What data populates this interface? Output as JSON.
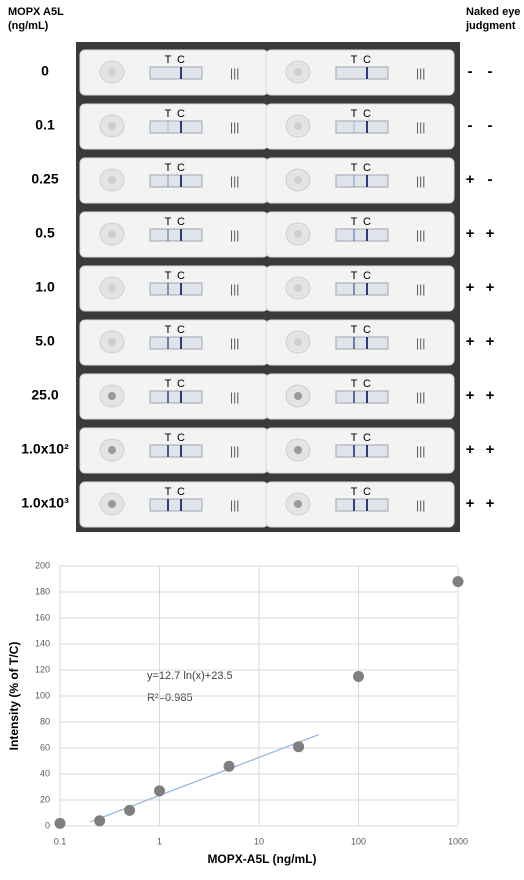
{
  "strip_panel": {
    "concentration_header": [
      "MOPX A5L",
      "(ng/mL)"
    ],
    "judgment_header": [
      "Naked eye",
      "judgment"
    ],
    "strip_labels": [
      "T",
      "C"
    ],
    "rows": [
      {
        "concentration": "0",
        "judgment": [
          "-",
          "-"
        ]
      },
      {
        "concentration": "0.1",
        "judgment": [
          "-",
          "-"
        ]
      },
      {
        "concentration": "0.25",
        "judgment": [
          "+",
          "-"
        ]
      },
      {
        "concentration": "0.5",
        "judgment": [
          "+",
          "+"
        ]
      },
      {
        "concentration": "1.0",
        "judgment": [
          "+",
          "+"
        ]
      },
      {
        "concentration": "5.0",
        "judgment": [
          "+",
          "+"
        ]
      },
      {
        "concentration": "25.0",
        "judgment": [
          "+",
          "+"
        ]
      },
      {
        "concentration": "1.0x10²",
        "judgment": [
          "+",
          "+"
        ]
      },
      {
        "concentration": "1.0x10³",
        "judgment": [
          "+",
          "+"
        ]
      }
    ]
  },
  "chart_data": {
    "type": "scatter",
    "x_label": "MOPX-A5L (ng/mL)",
    "y_label": "Intensity (% of T/C)",
    "x": [
      0.1,
      0.25,
      0.5,
      1,
      5,
      25,
      100,
      1000
    ],
    "values": [
      2,
      4,
      12,
      27,
      46,
      61,
      115,
      188
    ],
    "color": "#7f7f7f",
    "x_log": true,
    "xlim": [
      0.1,
      1000
    ],
    "xticks": [
      0.1,
      1,
      10,
      100,
      1000
    ],
    "ylim": [
      0,
      200
    ],
    "yticks": [
      0,
      20,
      40,
      60,
      80,
      100,
      120,
      140,
      160,
      180,
      200
    ],
    "grid": true,
    "trendline": {
      "color": "#8eb4e3",
      "slope": 12.7,
      "intercept": 23.5,
      "x_range": [
        0.2,
        40
      ]
    },
    "annotations": [
      "y=12.7 ln(x)+23.5",
      "R²=0.985"
    ]
  }
}
